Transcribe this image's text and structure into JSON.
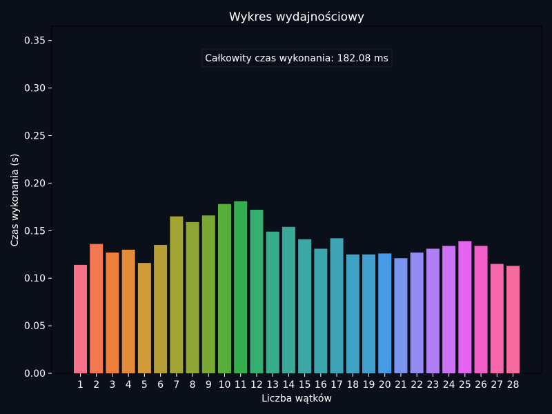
{
  "chart_data": {
    "type": "bar",
    "title": "Wykres wydajnościowy",
    "xlabel": "Liczba wątków",
    "ylabel": "Czas wykonania (s)",
    "ylim": [
      0,
      0.365
    ],
    "yticks": [
      "0.00",
      "0.05",
      "0.10",
      "0.15",
      "0.20",
      "0.25",
      "0.30",
      "0.35"
    ],
    "ytick_values": [
      0,
      0.05,
      0.1,
      0.15,
      0.2,
      0.25,
      0.3,
      0.35
    ],
    "categories": [
      "1",
      "2",
      "3",
      "4",
      "5",
      "6",
      "7",
      "8",
      "9",
      "10",
      "11",
      "12",
      "13",
      "14",
      "15",
      "16",
      "17",
      "18",
      "19",
      "20",
      "21",
      "22",
      "23",
      "24",
      "25",
      "26",
      "27",
      "28"
    ],
    "values": [
      0.114,
      0.136,
      0.127,
      0.13,
      0.116,
      0.135,
      0.165,
      0.159,
      0.166,
      0.178,
      0.181,
      0.172,
      0.149,
      0.154,
      0.141,
      0.131,
      0.142,
      0.125,
      0.125,
      0.126,
      0.121,
      0.127,
      0.131,
      0.134,
      0.139,
      0.134,
      0.115,
      0.113
    ],
    "colors": [
      "#f77189",
      "#f3774f",
      "#ef7e3a",
      "#e38b38",
      "#d29b3a",
      "#b49e35",
      "#a3a434",
      "#8ea533",
      "#7aa933",
      "#59ad3b",
      "#33b04d",
      "#36ae6f",
      "#38ac8b",
      "#39aa9a",
      "#3ba8a5",
      "#3ca6ad",
      "#3da4b6",
      "#3ea2c2",
      "#40a0cf",
      "#479be5",
      "#7b94ee",
      "#958af2",
      "#b07ef4",
      "#cc72f4",
      "#e565f0",
      "#f35fc9",
      "#f667ab",
      "#f66c9c"
    ],
    "annotation": "Całkowity czas wykonania: 182.08 ms",
    "background": "#0b0f19",
    "grid": false,
    "legend": "none"
  }
}
